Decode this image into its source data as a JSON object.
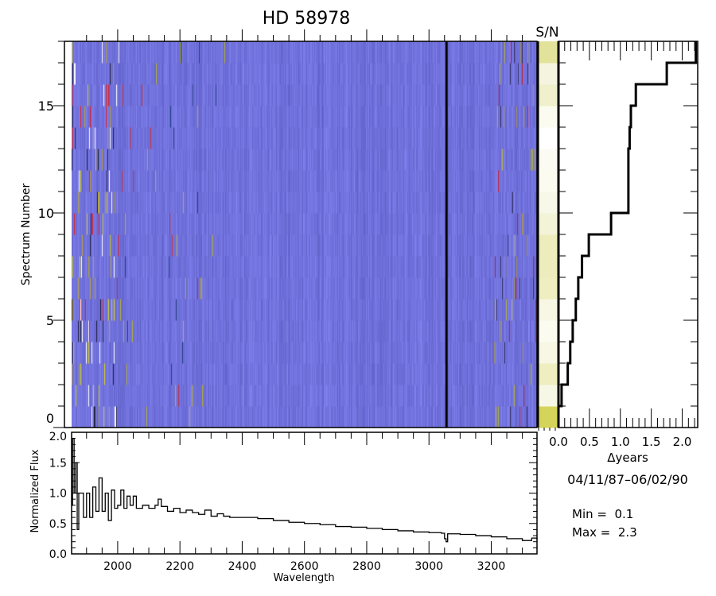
{
  "title": "HD  58978",
  "sn_label": "S/N",
  "chart_data": [
    {
      "type": "heatmap",
      "title": "HD  58978",
      "ylabel": "Spectrum Number",
      "xlim": [
        1852,
        3347
      ],
      "ylim": [
        0,
        18
      ],
      "yticks": [
        "0",
        "5",
        "10",
        "15"
      ],
      "n_spectra": 18,
      "colorscale": {
        "min_label": "Min =  0.1",
        "max_label": "Max =  2.3",
        "min": 0.1,
        "max": 2.3
      },
      "sn_colors": [
        "#d4d45a",
        "#f7f7e6",
        "#eeeec0",
        "#f7f7e4",
        "#fbfbef",
        "#f7f7e4",
        "#eeeec0",
        "#ececbc",
        "#ececbc",
        "#f3f3d8",
        "#f8f8e8",
        "#fbfbf0",
        "#fbfbf3",
        "#ffffff",
        "#fbfbf0",
        "#f0f0cc",
        "#f5f5df",
        "#e2e29a"
      ]
    },
    {
      "type": "line",
      "xlabel": "Wavelength",
      "ylabel": "Normalized Flux",
      "xlim": [
        1852,
        3347
      ],
      "ylim": [
        0,
        2
      ],
      "xticks": [
        "2000",
        "2200",
        "2400",
        "2600",
        "2800",
        "3000",
        "3200"
      ],
      "yticks": [
        "0.0",
        "0.5",
        "1.0",
        "1.5",
        "2.0"
      ],
      "x": [
        1852,
        1855,
        1860,
        1865,
        1870,
        1875,
        1880,
        1890,
        1900,
        1910,
        1920,
        1930,
        1940,
        1950,
        1960,
        1970,
        1980,
        1990,
        2000,
        2010,
        2020,
        2030,
        2040,
        2050,
        2060,
        2080,
        2100,
        2120,
        2130,
        2140,
        2160,
        2180,
        2200,
        2220,
        2240,
        2260,
        2280,
        2300,
        2320,
        2340,
        2360,
        2400,
        2450,
        2500,
        2550,
        2600,
        2650,
        2700,
        2750,
        2800,
        2850,
        2900,
        2950,
        3000,
        3040,
        3050,
        3055,
        3060,
        3100,
        3150,
        3200,
        3250,
        3300,
        3330,
        3347
      ],
      "y": [
        0.8,
        1.9,
        1.0,
        1.5,
        0.4,
        1.0,
        1.0,
        0.6,
        1.0,
        0.6,
        1.1,
        0.7,
        1.25,
        0.7,
        1.0,
        0.55,
        1.05,
        0.75,
        0.8,
        1.05,
        0.75,
        0.95,
        0.8,
        0.95,
        0.75,
        0.8,
        0.75,
        0.8,
        0.9,
        0.78,
        0.7,
        0.75,
        0.68,
        0.72,
        0.68,
        0.65,
        0.72,
        0.62,
        0.66,
        0.62,
        0.6,
        0.6,
        0.58,
        0.55,
        0.52,
        0.5,
        0.48,
        0.45,
        0.44,
        0.42,
        0.4,
        0.38,
        0.36,
        0.35,
        0.34,
        0.25,
        0.2,
        0.33,
        0.32,
        0.3,
        0.28,
        0.25,
        0.22,
        0.26,
        0.24
      ]
    },
    {
      "type": "line",
      "xlabel": "Δyears",
      "date_range": "04/11/87–06/02/90",
      "xlim": [
        0,
        2.25
      ],
      "xticks": [
        "0.0",
        "0.5",
        "1.0",
        "1.5",
        "2.0"
      ],
      "delta_years": [
        0.0,
        0.05,
        0.15,
        0.19,
        0.23,
        0.28,
        0.32,
        0.38,
        0.49,
        0.85,
        1.13,
        1.13,
        1.13,
        1.15,
        1.17,
        1.25,
        1.75,
        2.22
      ]
    }
  ]
}
